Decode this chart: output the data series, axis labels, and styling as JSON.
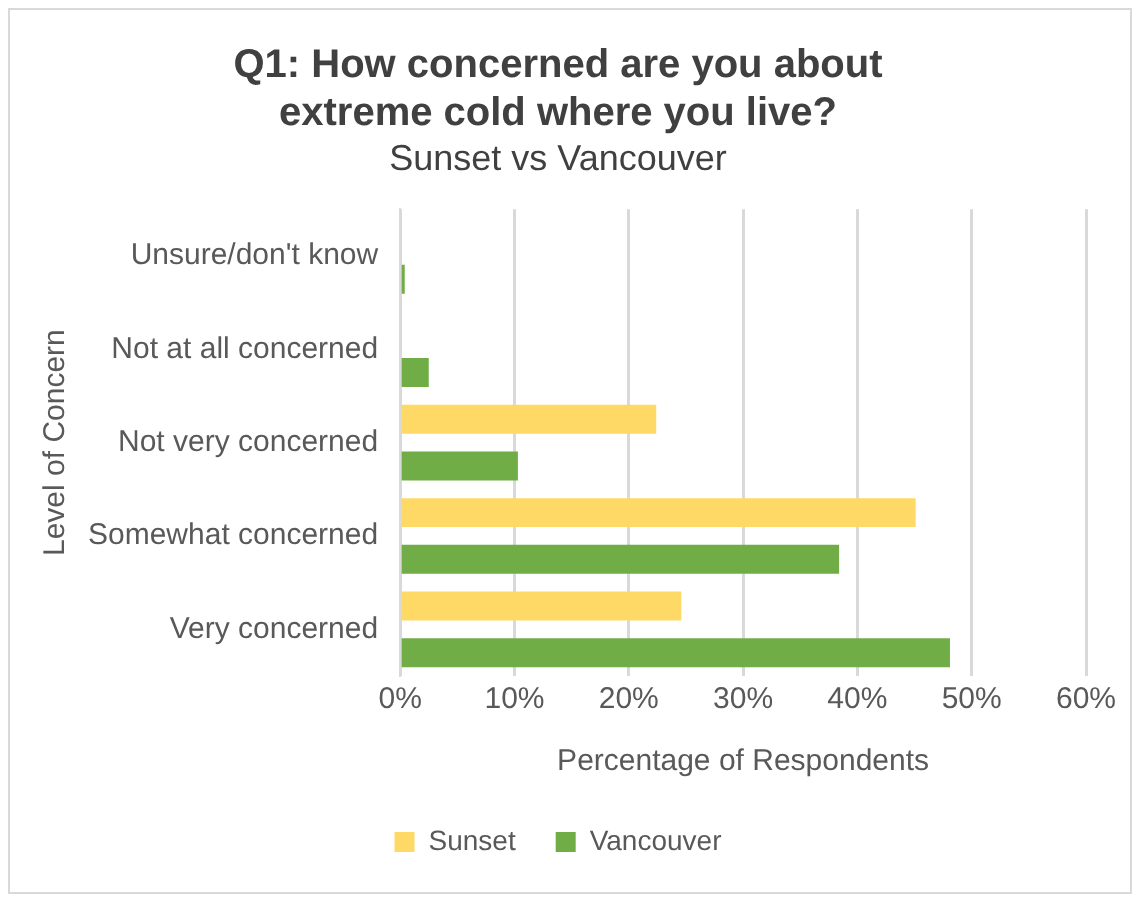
{
  "chart_data": {
    "type": "bar",
    "orientation": "horizontal",
    "title": "Q1: How concerned are you about extreme cold where you live?",
    "subtitle": "Sunset vs Vancouver",
    "xlabel": "Percentage of Respondents",
    "ylabel": "Level of Concern",
    "categories": [
      "Unsure/don't know",
      "Not at all concerned",
      "Not very concerned",
      "Somewhat concerned",
      "Very concerned"
    ],
    "series": [
      {
        "name": "Sunset",
        "color": "#ffd966",
        "values": [
          0,
          0,
          22.4,
          45.1,
          24.6
        ]
      },
      {
        "name": "Vancouver",
        "color": "#70ad47",
        "values": [
          0.4,
          2.5,
          10.3,
          38.4,
          48.1
        ]
      }
    ],
    "xlim": [
      0,
      60
    ],
    "xticks": [
      {
        "value": 0,
        "label": "0%"
      },
      {
        "value": 10,
        "label": "10%"
      },
      {
        "value": 20,
        "label": "20%"
      },
      {
        "value": 30,
        "label": "30%"
      },
      {
        "value": 40,
        "label": "40%"
      },
      {
        "value": 50,
        "label": "50%"
      },
      {
        "value": 60,
        "label": "60%"
      }
    ],
    "grid": "x",
    "legend": "bottom"
  }
}
